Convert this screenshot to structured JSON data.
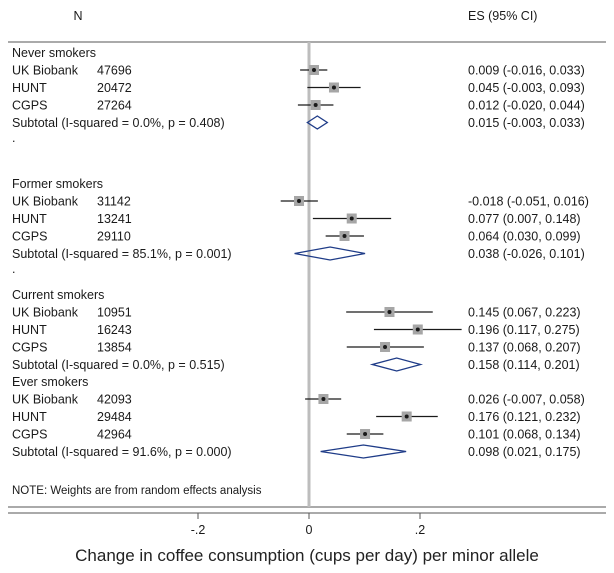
{
  "chart_data": {
    "type": "forest",
    "header_left": "N",
    "header_right": "ES (95% CI)",
    "xlabel": "Change in coffee consumption (cups per day) per minor allele",
    "xlim": [
      -0.3,
      0.4
    ],
    "xticks": [
      {
        "value": -0.2,
        "label": "-.2"
      },
      {
        "value": 0,
        "label": "0"
      },
      {
        "value": 0.2,
        "label": ".2"
      }
    ],
    "reference_line": 0,
    "groups": [
      {
        "title": "Never smokers",
        "studies": [
          {
            "name": "UK Biobank",
            "n": "47696",
            "es": 0.009,
            "lo": -0.016,
            "hi": 0.033,
            "ci_text": "0.009 (-0.016, 0.033)"
          },
          {
            "name": "HUNT",
            "n": "20472",
            "es": 0.045,
            "lo": -0.003,
            "hi": 0.093,
            "ci_text": "0.045 (-0.003, 0.093)"
          },
          {
            "name": "CGPS",
            "n": "27264",
            "es": 0.012,
            "lo": -0.02,
            "hi": 0.044,
            "ci_text": "0.012 (-0.020, 0.044)"
          }
        ],
        "subtotal": {
          "label": "Subtotal  (I-squared = 0.0%, p = 0.408)",
          "es": 0.015,
          "lo": -0.003,
          "hi": 0.033,
          "ci_text": "0.015 (-0.003, 0.033)"
        }
      },
      {
        "title": "Former smokers",
        "studies": [
          {
            "name": "UK Biobank",
            "n": "31142",
            "es": -0.018,
            "lo": -0.051,
            "hi": 0.016,
            "ci_text": "-0.018 (-0.051, 0.016)"
          },
          {
            "name": "HUNT",
            "n": "13241",
            "es": 0.077,
            "lo": 0.007,
            "hi": 0.148,
            "ci_text": "0.077 (0.007, 0.148)"
          },
          {
            "name": "CGPS",
            "n": "29110",
            "es": 0.064,
            "lo": 0.03,
            "hi": 0.099,
            "ci_text": "0.064 (0.030, 0.099)"
          }
        ],
        "subtotal": {
          "label": "Subtotal  (I-squared = 85.1%, p = 0.001)",
          "es": 0.038,
          "lo": -0.026,
          "hi": 0.101,
          "ci_text": "0.038 (-0.026, 0.101)"
        }
      },
      {
        "title": "Current smokers",
        "studies": [
          {
            "name": "UK Biobank",
            "n": "10951",
            "es": 0.145,
            "lo": 0.067,
            "hi": 0.223,
            "ci_text": "0.145 (0.067, 0.223)"
          },
          {
            "name": "HUNT",
            "n": "16243",
            "es": 0.196,
            "lo": 0.117,
            "hi": 0.275,
            "ci_text": "0.196 (0.117, 0.275)"
          },
          {
            "name": "CGPS",
            "n": "13854",
            "es": 0.137,
            "lo": 0.068,
            "hi": 0.207,
            "ci_text": "0.137 (0.068, 0.207)"
          }
        ],
        "subtotal": {
          "label": "Subtotal  (I-squared = 0.0%, p = 0.515)",
          "es": 0.158,
          "lo": 0.114,
          "hi": 0.201,
          "ci_text": "0.158 (0.114, 0.201)"
        }
      },
      {
        "title": "Ever smokers",
        "studies": [
          {
            "name": "UK Biobank",
            "n": "42093",
            "es": 0.026,
            "lo": -0.007,
            "hi": 0.058,
            "ci_text": "0.026 (-0.007, 0.058)"
          },
          {
            "name": "HUNT",
            "n": "29484",
            "es": 0.176,
            "lo": 0.121,
            "hi": 0.232,
            "ci_text": "0.176 (0.121, 0.232)"
          },
          {
            "name": "CGPS",
            "n": "42964",
            "es": 0.101,
            "lo": 0.068,
            "hi": 0.134,
            "ci_text": "0.101 (0.068, 0.134)"
          }
        ],
        "subtotal": {
          "label": "Subtotal  (I-squared = 91.6%, p = 0.000)",
          "es": 0.098,
          "lo": 0.021,
          "hi": 0.175,
          "ci_text": "0.098 (0.021, 0.175)"
        }
      }
    ],
    "separator": ".",
    "note": "NOTE: Weights are from random effects analysis",
    "colors": {
      "text": "#1a1a1a",
      "diamond": "#1f3c88",
      "box": "#a6a6a6",
      "ref_line": "#bdbdbd",
      "frame": "#555555"
    }
  }
}
